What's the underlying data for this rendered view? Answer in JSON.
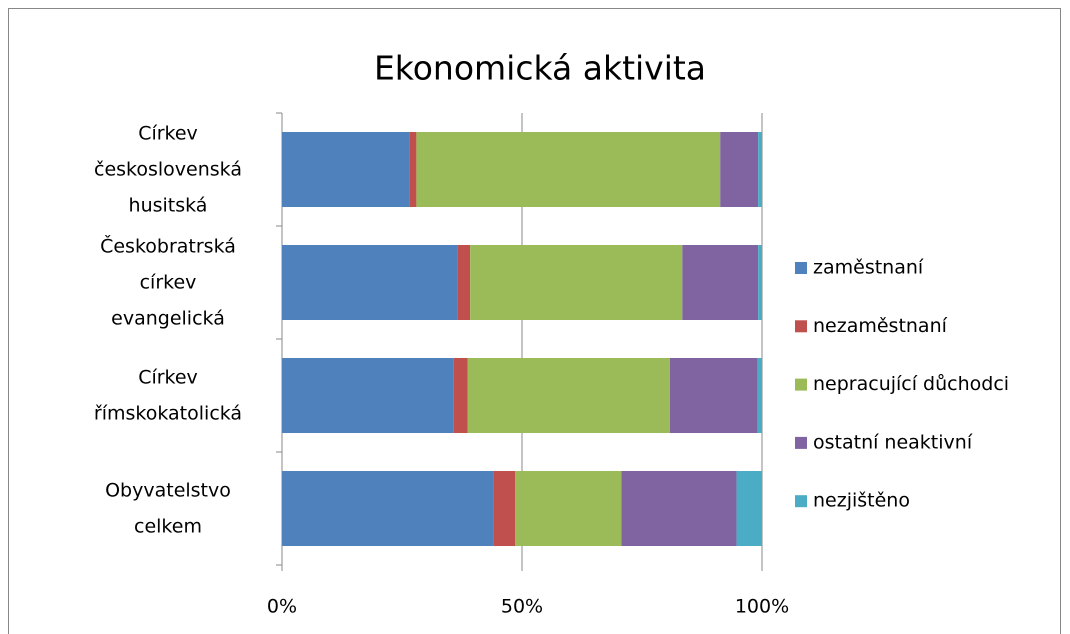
{
  "chart_data": {
    "type": "stacked_barh",
    "title": "Ekonomická aktivita",
    "categories": [
      "Církev československá husitská",
      "Českobratrská církev evangelická",
      "Církev římskokatolická",
      "Obyvatelstvo celkem"
    ],
    "series": [
      {
        "name": "zaměstnaní",
        "color": "#4f81bd",
        "values": [
          26.5,
          36.5,
          35.8,
          44.0
        ]
      },
      {
        "name": "nezaměstnaní",
        "color": "#c0504d",
        "values": [
          1.5,
          2.7,
          2.9,
          4.6
        ]
      },
      {
        "name": "nepracující důchodci",
        "color": "#9bbb59",
        "values": [
          63.3,
          44.2,
          42.1,
          22.1
        ]
      },
      {
        "name": "ostatní neaktivní",
        "color": "#8064a2",
        "values": [
          7.9,
          15.8,
          18.3,
          24.0
        ]
      },
      {
        "name": "nezjištěno",
        "color": "#4bacc6",
        "values": [
          0.8,
          0.8,
          0.9,
          5.3
        ]
      }
    ],
    "xlim": [
      0,
      100
    ],
    "xticks": [
      {
        "value": 0,
        "label": "0%"
      },
      {
        "value": 50,
        "label": "50%"
      },
      {
        "value": 100,
        "label": "100%"
      }
    ],
    "grid": true,
    "legend": "right"
  }
}
